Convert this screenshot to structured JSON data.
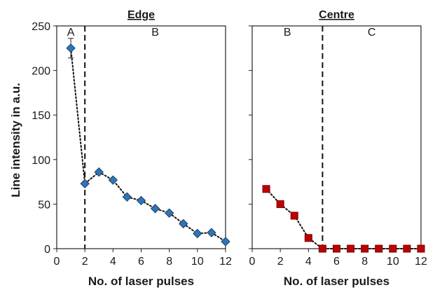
{
  "chart_data": [
    {
      "type": "scatter",
      "title": "Edge",
      "xlabel": "No. of laser pulses",
      "ylabel": "Line intensity in a.u.",
      "xlim": [
        0,
        12
      ],
      "ylim": [
        0,
        250
      ],
      "xticks": [
        0,
        2,
        4,
        6,
        8,
        10,
        12
      ],
      "yticks": [
        0,
        50,
        100,
        150,
        200,
        250
      ],
      "x_tick_labels": [
        "0",
        "2",
        "4",
        "6",
        "8",
        "10",
        "12"
      ],
      "y_tick_labels": [
        "0",
        "50",
        "100",
        "150",
        "200",
        "250"
      ],
      "marker": "diamond",
      "line_style": "dotted",
      "color": "#2e75b6",
      "grid": false,
      "divider_x": 2,
      "regions": [
        {
          "label": "A",
          "x": 1
        },
        {
          "label": "B",
          "x": 7
        }
      ],
      "series": [
        {
          "x": [
            1,
            2,
            3,
            4,
            5,
            6,
            7,
            8,
            9,
            10,
            11,
            12
          ],
          "y": [
            225,
            73,
            86,
            77,
            58,
            54,
            45,
            40,
            28,
            17,
            18,
            8
          ],
          "error": [
            11,
            0,
            0,
            0,
            0,
            0,
            0,
            0,
            0,
            0,
            0,
            0
          ]
        }
      ]
    },
    {
      "type": "scatter",
      "title": "Centre",
      "xlabel": "No. of laser pulses",
      "ylabel": "",
      "xlim": [
        0,
        12
      ],
      "ylim": [
        0,
        250
      ],
      "xticks": [
        0,
        2,
        4,
        6,
        8,
        10,
        12
      ],
      "yticks": [
        0,
        50,
        100,
        150,
        200,
        250
      ],
      "x_tick_labels": [
        "0",
        "2",
        "4",
        "6",
        "8",
        "10",
        "12"
      ],
      "marker": "square",
      "line_style": "dotted",
      "color": "#c00000",
      "grid": false,
      "divider_x": 5,
      "regions": [
        {
          "label": "B",
          "x": 2.5
        },
        {
          "label": "C",
          "x": 8.5
        }
      ],
      "series": [
        {
          "x": [
            1,
            2,
            3,
            4,
            5,
            6,
            7,
            8,
            9,
            10,
            11,
            12
          ],
          "y": [
            67,
            50,
            37,
            12,
            0,
            0,
            0,
            0,
            0,
            0,
            0,
            0
          ]
        }
      ]
    }
  ]
}
